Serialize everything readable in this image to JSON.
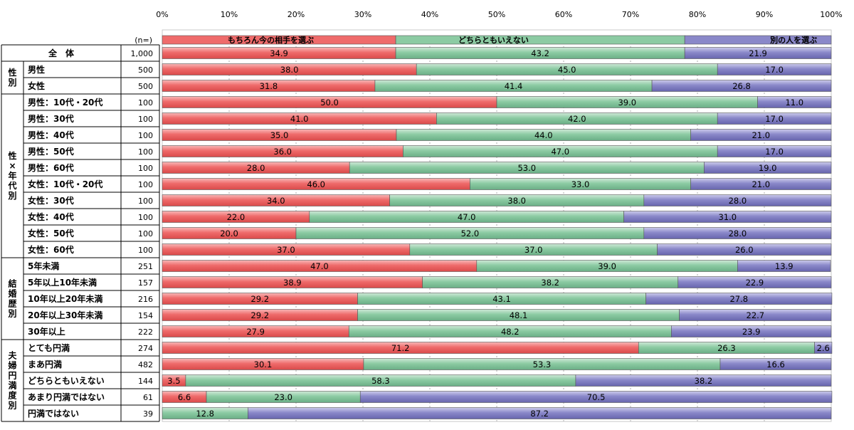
{
  "chart_data": {
    "type": "bar",
    "orientation": "horizontal",
    "stacked": "percent",
    "xlim": [
      0,
      100
    ],
    "x_ticks": [
      "0%",
      "10%",
      "20%",
      "30%",
      "40%",
      "50%",
      "60%",
      "70%",
      "80%",
      "90%",
      "100%"
    ],
    "n_header": "(n=)",
    "series": [
      {
        "name": "もちろん今の相手を選ぶ",
        "color": "#ef6b6b"
      },
      {
        "name": "どちらともいえない",
        "color": "#8ccba3"
      },
      {
        "name": "別の人を選ぶ",
        "color": "#8a88c9"
      }
    ],
    "groups": [
      {
        "label": "",
        "rows": [
          {
            "label": "全　体",
            "n": "1,000",
            "values": [
              34.9,
              43.2,
              21.9
            ],
            "labels": [
              "34.9",
              "43.2",
              "21.9"
            ]
          }
        ]
      },
      {
        "label": "性別",
        "rows": [
          {
            "label": "男性",
            "n": "500",
            "values": [
              38.0,
              45.0,
              17.0
            ],
            "labels": [
              "38.0",
              "45.0",
              "17.0"
            ]
          },
          {
            "label": "女性",
            "n": "500",
            "values": [
              31.8,
              41.4,
              26.8
            ],
            "labels": [
              "31.8",
              "41.4",
              "26.8"
            ]
          }
        ]
      },
      {
        "label": "性×年代別",
        "rows": [
          {
            "label": "男性：10代・20代",
            "n": "100",
            "values": [
              50.0,
              39.0,
              11.0
            ],
            "labels": [
              "50.0",
              "39.0",
              "11.0"
            ]
          },
          {
            "label": "男性：30代",
            "n": "100",
            "values": [
              41.0,
              42.0,
              17.0
            ],
            "labels": [
              "41.0",
              "42.0",
              "17.0"
            ]
          },
          {
            "label": "男性：40代",
            "n": "100",
            "values": [
              35.0,
              44.0,
              21.0
            ],
            "labels": [
              "35.0",
              "44.0",
              "21.0"
            ]
          },
          {
            "label": "男性：50代",
            "n": "100",
            "values": [
              36.0,
              47.0,
              17.0
            ],
            "labels": [
              "36.0",
              "47.0",
              "17.0"
            ]
          },
          {
            "label": "男性：60代",
            "n": "100",
            "values": [
              28.0,
              53.0,
              19.0
            ],
            "labels": [
              "28.0",
              "53.0",
              "19.0"
            ]
          },
          {
            "label": "女性：10代・20代",
            "n": "100",
            "values": [
              46.0,
              33.0,
              21.0
            ],
            "labels": [
              "46.0",
              "33.0",
              "21.0"
            ]
          },
          {
            "label": "女性：30代",
            "n": "100",
            "values": [
              34.0,
              38.0,
              28.0
            ],
            "labels": [
              "34.0",
              "38.0",
              "28.0"
            ]
          },
          {
            "label": "女性：40代",
            "n": "100",
            "values": [
              22.0,
              47.0,
              31.0
            ],
            "labels": [
              "22.0",
              "47.0",
              "31.0"
            ]
          },
          {
            "label": "女性：50代",
            "n": "100",
            "values": [
              20.0,
              52.0,
              28.0
            ],
            "labels": [
              "20.0",
              "52.0",
              "28.0"
            ]
          },
          {
            "label": "女性：60代",
            "n": "100",
            "values": [
              37.0,
              37.0,
              26.0
            ],
            "labels": [
              "37.0",
              "37.0",
              "26.0"
            ]
          }
        ]
      },
      {
        "label": "結婚歴別",
        "rows": [
          {
            "label": "5年未満",
            "n": "251",
            "values": [
              47.0,
              39.0,
              13.9
            ],
            "labels": [
              "47.0",
              "39.0",
              "13.9"
            ]
          },
          {
            "label": "5年以上10年未満",
            "n": "157",
            "values": [
              38.9,
              38.2,
              22.9
            ],
            "labels": [
              "38.9",
              "38.2",
              "22.9"
            ]
          },
          {
            "label": "10年以上20年未満",
            "n": "216",
            "values": [
              29.2,
              43.1,
              27.8
            ],
            "labels": [
              "29.2",
              "43.1",
              "27.8"
            ]
          },
          {
            "label": "20年以上30年未満",
            "n": "154",
            "values": [
              29.2,
              48.1,
              22.7
            ],
            "labels": [
              "29.2",
              "48.1",
              "22.7"
            ]
          },
          {
            "label": "30年以上",
            "n": "222",
            "values": [
              27.9,
              48.2,
              23.9
            ],
            "labels": [
              "27.9",
              "48.2",
              "23.9"
            ]
          }
        ]
      },
      {
        "label": "夫婦円満度別",
        "rows": [
          {
            "label": "とても円満",
            "n": "274",
            "values": [
              71.2,
              26.3,
              2.6
            ],
            "labels": [
              "71.2",
              "26.3",
              "2.6"
            ]
          },
          {
            "label": "まあ円満",
            "n": "482",
            "values": [
              30.1,
              53.3,
              16.6
            ],
            "labels": [
              "30.1",
              "53.3",
              "16.6"
            ]
          },
          {
            "label": "どちらともいえない",
            "n": "144",
            "values": [
              3.5,
              58.3,
              38.2
            ],
            "labels": [
              "3.5",
              "58.3",
              "38.2"
            ]
          },
          {
            "label": "あまり円満ではない",
            "n": "61",
            "values": [
              6.6,
              23.0,
              70.5
            ],
            "labels": [
              "6.6",
              "23.0",
              "70.5"
            ]
          },
          {
            "label": "円満ではない",
            "n": "39",
            "values": [
              0.0,
              12.8,
              87.2
            ],
            "labels": [
              "",
              "12.8",
              "87.2"
            ]
          }
        ]
      }
    ]
  }
}
